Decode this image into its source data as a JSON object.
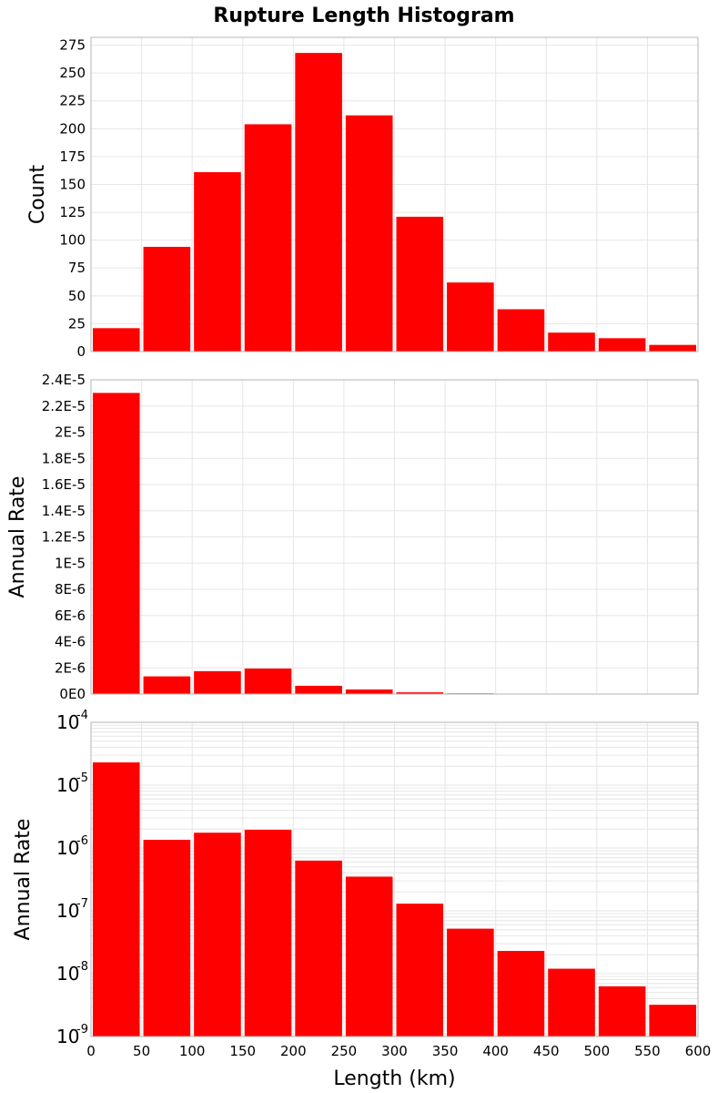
{
  "title": "Rupture Length Histogram",
  "colors": {
    "bar": "#ff0000",
    "grid": "#e6e6e6",
    "frame": "#b4b4b4"
  },
  "chart_data": [
    {
      "type": "bar",
      "name": "count-histogram",
      "ylabel": "Count",
      "xlim": [
        0,
        600
      ],
      "ylim": [
        0,
        282
      ],
      "yscale": "linear",
      "bin_width": 50,
      "bin_centers": [
        25,
        75,
        125,
        175,
        225,
        275,
        325,
        375,
        425,
        475,
        525,
        575
      ],
      "values": [
        21,
        94,
        161,
        204,
        268,
        212,
        121,
        62,
        38,
        17,
        12,
        6
      ],
      "yticks": [
        0,
        25,
        50,
        75,
        100,
        125,
        150,
        175,
        200,
        225,
        250,
        275
      ],
      "ytick_labels": [
        "0",
        "25",
        "50",
        "75",
        "100",
        "125",
        "150",
        "175",
        "200",
        "225",
        "250",
        "275"
      ],
      "grid": true
    },
    {
      "type": "bar",
      "name": "rate-linear-histogram",
      "ylabel": "Annual Rate",
      "xlim": [
        0,
        600
      ],
      "ylim": [
        0,
        2.4e-05
      ],
      "yscale": "linear",
      "bin_width": 50,
      "bin_centers": [
        25,
        75,
        125,
        175,
        225,
        275,
        325,
        375,
        425,
        475,
        525,
        575
      ],
      "values": [
        2.3e-05,
        1.35e-06,
        1.75e-06,
        1.95e-06,
        6.3e-07,
        3.5e-07,
        1.3e-07,
        5.2e-08,
        2.3e-08,
        1.2e-08,
        6.3e-09,
        3.2e-09
      ],
      "yticks": [
        0,
        2e-06,
        4e-06,
        6e-06,
        8e-06,
        1e-05,
        1.2e-05,
        1.4e-05,
        1.6e-05,
        1.8e-05,
        2e-05,
        2.2e-05,
        2.4e-05
      ],
      "ytick_labels": [
        "0E0",
        "2E-6",
        "4E-6",
        "6E-6",
        "8E-6",
        "1E-5",
        "1.2E-5",
        "1.4E-5",
        "1.6E-5",
        "1.8E-5",
        "2E-5",
        "2.2E-5",
        "2.4E-5"
      ],
      "grid": true
    },
    {
      "type": "bar",
      "name": "rate-log-histogram",
      "ylabel": "Annual Rate",
      "xlabel": "Length (km)",
      "xlim": [
        0,
        600
      ],
      "ylim": [
        1e-09,
        0.0001
      ],
      "yscale": "log",
      "bin_width": 50,
      "bin_centers": [
        25,
        75,
        125,
        175,
        225,
        275,
        325,
        375,
        425,
        475,
        525,
        575
      ],
      "values": [
        2.3e-05,
        1.35e-06,
        1.75e-06,
        1.95e-06,
        6.3e-07,
        3.5e-07,
        1.3e-07,
        5.2e-08,
        2.3e-08,
        1.2e-08,
        6.3e-09,
        3.2e-09
      ],
      "ytick_base": "10",
      "ytick_exponents": [
        "-9",
        "-8",
        "-7",
        "-6",
        "-5",
        "-4"
      ],
      "xticks": [
        0,
        50,
        100,
        150,
        200,
        250,
        300,
        350,
        400,
        450,
        500,
        550,
        600
      ],
      "xtick_labels": [
        "0",
        "50",
        "100",
        "150",
        "200",
        "250",
        "300",
        "350",
        "400",
        "450",
        "500",
        "550",
        "600"
      ],
      "grid": true
    }
  ]
}
